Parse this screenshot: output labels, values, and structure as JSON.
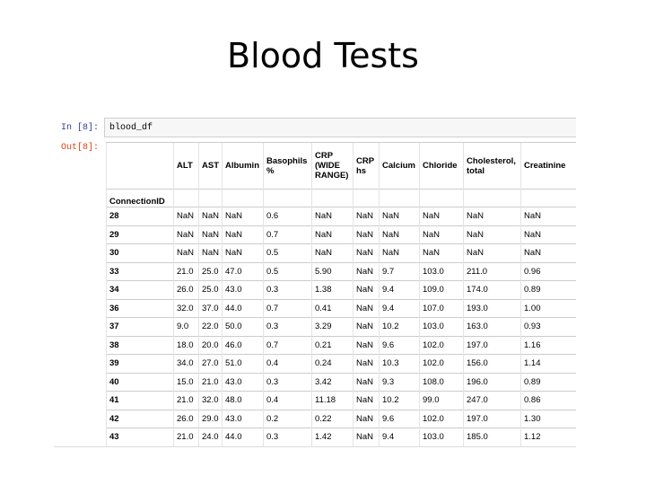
{
  "header": {
    "title": "Blood Tests"
  },
  "input": {
    "prompt": "In [8]:",
    "code": "blood_df"
  },
  "output": {
    "prompt": "Out[8]:"
  },
  "table": {
    "columns": [
      "ALT",
      "AST",
      "Albumin",
      "Basophils %",
      "CRP (WIDE RANGE)",
      "CRP hs",
      "Calcium",
      "Chloride",
      "Cholesterol, total",
      "Creatinine"
    ],
    "index_name": "ConnectionID",
    "rows": [
      [
        "28",
        "NaN",
        "NaN",
        "NaN",
        "0.6",
        "NaN",
        "NaN",
        "NaN",
        "NaN",
        "NaN",
        "NaN"
      ],
      [
        "29",
        "NaN",
        "NaN",
        "NaN",
        "0.7",
        "NaN",
        "NaN",
        "NaN",
        "NaN",
        "NaN",
        "NaN"
      ],
      [
        "30",
        "NaN",
        "NaN",
        "NaN",
        "0.5",
        "NaN",
        "NaN",
        "NaN",
        "NaN",
        "NaN",
        "NaN"
      ],
      [
        "33",
        "21.0",
        "25.0",
        "47.0",
        "0.5",
        "5.90",
        "NaN",
        "9.7",
        "103.0",
        "211.0",
        "0.96"
      ],
      [
        "34",
        "26.0",
        "25.0",
        "43.0",
        "0.3",
        "1.38",
        "NaN",
        "9.4",
        "109.0",
        "174.0",
        "0.89"
      ],
      [
        "36",
        "32.0",
        "37.0",
        "44.0",
        "0.7",
        "0.41",
        "NaN",
        "9.4",
        "107.0",
        "193.0",
        "1.00"
      ],
      [
        "37",
        "9.0",
        "22.0",
        "50.0",
        "0.3",
        "3.29",
        "NaN",
        "10.2",
        "103.0",
        "163.0",
        "0.93"
      ],
      [
        "38",
        "18.0",
        "20.0",
        "46.0",
        "0.7",
        "0.21",
        "NaN",
        "9.6",
        "102.0",
        "197.0",
        "1.16"
      ],
      [
        "39",
        "34.0",
        "27.0",
        "51.0",
        "0.4",
        "0.24",
        "NaN",
        "10.3",
        "102.0",
        "156.0",
        "1.14"
      ],
      [
        "40",
        "15.0",
        "21.0",
        "43.0",
        "0.3",
        "3.42",
        "NaN",
        "9.3",
        "108.0",
        "196.0",
        "0.89"
      ],
      [
        "41",
        "21.0",
        "32.0",
        "48.0",
        "0.4",
        "11.18",
        "NaN",
        "10.2",
        "99.0",
        "247.0",
        "0.86"
      ],
      [
        "42",
        "26.0",
        "29.0",
        "43.0",
        "0.2",
        "0.22",
        "NaN",
        "9.6",
        "102.0",
        "197.0",
        "1.30"
      ],
      [
        "43",
        "21.0",
        "24.0",
        "44.0",
        "0.3",
        "1.42",
        "NaN",
        "9.4",
        "103.0",
        "185.0",
        "1.12"
      ]
    ]
  }
}
